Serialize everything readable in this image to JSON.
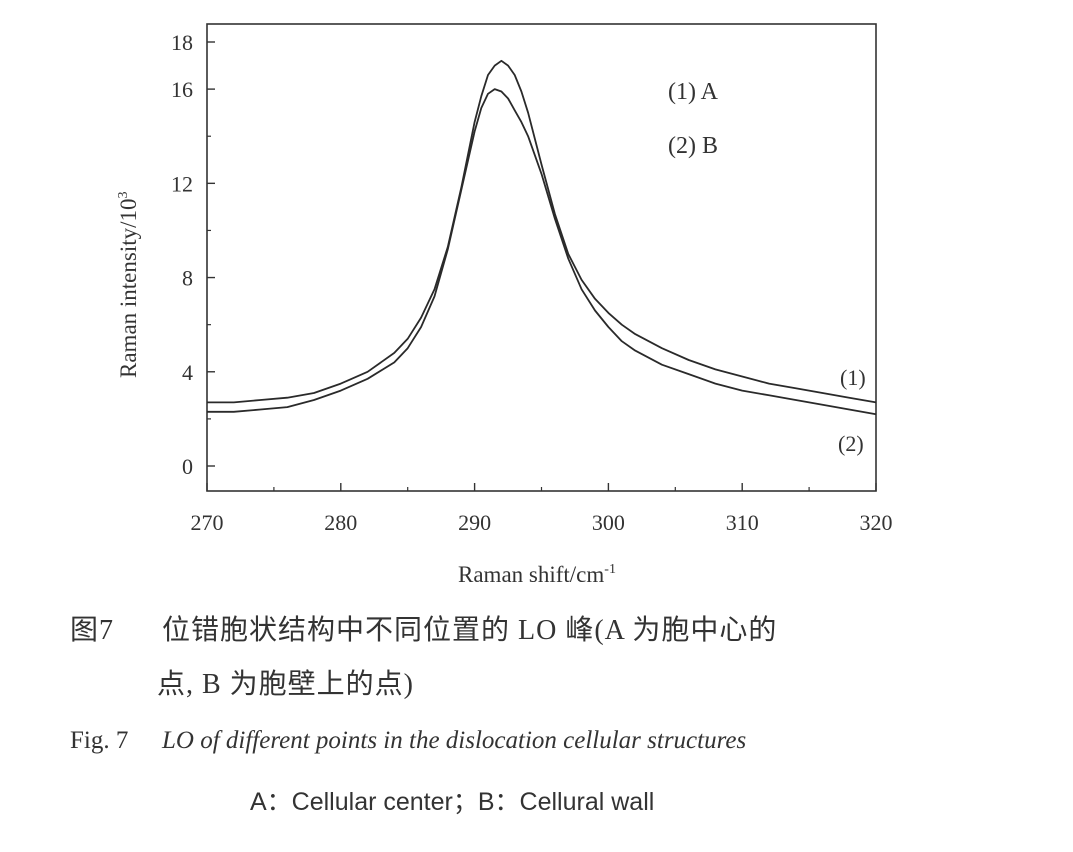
{
  "chart_data": {
    "type": "line",
    "xlabel": "Raman shift/cm",
    "xlabel_sup": "-1",
    "ylabel": "Raman intensity/10",
    "ylabel_sup": "3",
    "xlim": [
      270,
      320
    ],
    "ylim": [
      0,
      18
    ],
    "x_ticks": [
      270,
      280,
      290,
      300,
      310,
      320
    ],
    "y_ticks": [
      0,
      4,
      8,
      12,
      16,
      18
    ],
    "grid": false,
    "legend_position": "top-right",
    "legend": [
      "(1) A",
      "(2) B"
    ],
    "series": [
      {
        "name": "(1) A",
        "end_label": "(1)",
        "x": [
          270,
          272,
          274,
          276,
          278,
          280,
          282,
          284,
          285,
          286,
          287,
          288,
          289,
          290,
          290.5,
          291,
          291.5,
          292,
          292.5,
          293,
          293.5,
          294,
          295,
          296,
          297,
          298,
          299,
          300,
          301,
          302,
          304,
          306,
          308,
          310,
          312,
          314,
          316,
          318,
          320
        ],
        "y": [
          2.7,
          2.7,
          2.8,
          2.9,
          3.1,
          3.5,
          4.0,
          4.8,
          5.4,
          6.3,
          7.5,
          9.3,
          11.8,
          14.6,
          15.7,
          16.6,
          17.0,
          17.2,
          17.0,
          16.6,
          15.9,
          15.0,
          12.8,
          10.7,
          9.0,
          7.9,
          7.1,
          6.5,
          6.0,
          5.6,
          5.0,
          4.5,
          4.1,
          3.8,
          3.5,
          3.3,
          3.1,
          2.9,
          2.7
        ]
      },
      {
        "name": "(2) B",
        "end_label": "(2)",
        "x": [
          270,
          272,
          274,
          276,
          278,
          280,
          282,
          284,
          285,
          286,
          287,
          288,
          289,
          290,
          290.5,
          291,
          291.5,
          292,
          292.5,
          293,
          293.5,
          294,
          295,
          296,
          297,
          298,
          299,
          300,
          301,
          302,
          304,
          306,
          308,
          310,
          312,
          314,
          316,
          318,
          320
        ],
        "y": [
          2.3,
          2.3,
          2.4,
          2.5,
          2.8,
          3.2,
          3.7,
          4.4,
          5.0,
          5.9,
          7.2,
          9.2,
          11.7,
          14.2,
          15.2,
          15.8,
          16.0,
          15.9,
          15.6,
          15.1,
          14.6,
          14.0,
          12.4,
          10.5,
          8.8,
          7.5,
          6.6,
          5.9,
          5.3,
          4.9,
          4.3,
          3.9,
          3.5,
          3.2,
          3.0,
          2.8,
          2.6,
          2.4,
          2.2
        ]
      }
    ]
  },
  "caption": {
    "cn_label": "图7",
    "cn_line1": "位错胞状结构中不同位置的 LO 峰(A 为胞中心的",
    "cn_line2": "点, B 为胞壁上的点)",
    "en_label": "Fig. 7",
    "en_line1": "LO of different points in the dislocation cellular structures",
    "en_line2": "A：Cellular center；B：Cellural wall"
  },
  "colors": {
    "line": "#2a2a2a",
    "axis": "#333333",
    "background": "#ffffff"
  }
}
